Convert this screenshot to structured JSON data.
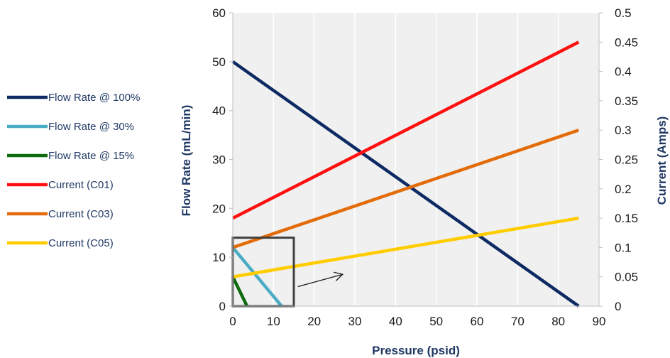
{
  "chart_data": {
    "type": "line",
    "title": "",
    "xlabel": "Pressure (psid)",
    "ylabel": "Flow Rate (mL/min)",
    "y2label": "Current (Amps)",
    "xlim": [
      0,
      90
    ],
    "ylim": [
      0,
      60
    ],
    "y2lim": [
      0,
      0.5
    ],
    "x_ticks": [
      "0",
      "10",
      "20",
      "30",
      "40",
      "50",
      "60",
      "70",
      "80",
      "90"
    ],
    "y_ticks": [
      "0",
      "10",
      "20",
      "30",
      "40",
      "50",
      "60"
    ],
    "y2_ticks": [
      "0",
      "0.05",
      "0.1",
      "0.15",
      "0.2",
      "0.25",
      "0.3",
      "0.35",
      "0.4",
      "0.45",
      "0.5"
    ],
    "grid": "vertical",
    "legend_position": "left",
    "series": [
      {
        "name": "Flow Rate @ 100%",
        "axis": "y",
        "color": "#0d2a63",
        "x": [
          0,
          85
        ],
        "y": [
          50,
          0
        ]
      },
      {
        "name": "Flow Rate @ 30%",
        "axis": "y",
        "color": "#4bacc6",
        "x": [
          0,
          12
        ],
        "y": [
          12,
          0
        ]
      },
      {
        "name": "Flow Rate @ 15%",
        "axis": "y",
        "color": "#0e6b0e",
        "x": [
          0,
          3.5
        ],
        "y": [
          6,
          0
        ]
      },
      {
        "name": "Current (C01)",
        "axis": "y2",
        "color": "#ff1010",
        "x": [
          0,
          85
        ],
        "y": [
          0.15,
          0.45
        ]
      },
      {
        "name": "Current (C03)",
        "axis": "y2",
        "color": "#e36c09",
        "x": [
          0,
          85
        ],
        "y": [
          0.1,
          0.3
        ]
      },
      {
        "name": "Current (C05)",
        "axis": "y2",
        "color": "#ffcc00",
        "x": [
          0,
          85
        ],
        "y": [
          0.05,
          0.15
        ]
      }
    ],
    "annotations": [
      {
        "type": "box",
        "x": [
          0,
          15
        ],
        "y": [
          0,
          14
        ]
      },
      {
        "type": "arrow",
        "from": [
          16,
          4
        ],
        "to": [
          27,
          6.5
        ]
      }
    ]
  }
}
